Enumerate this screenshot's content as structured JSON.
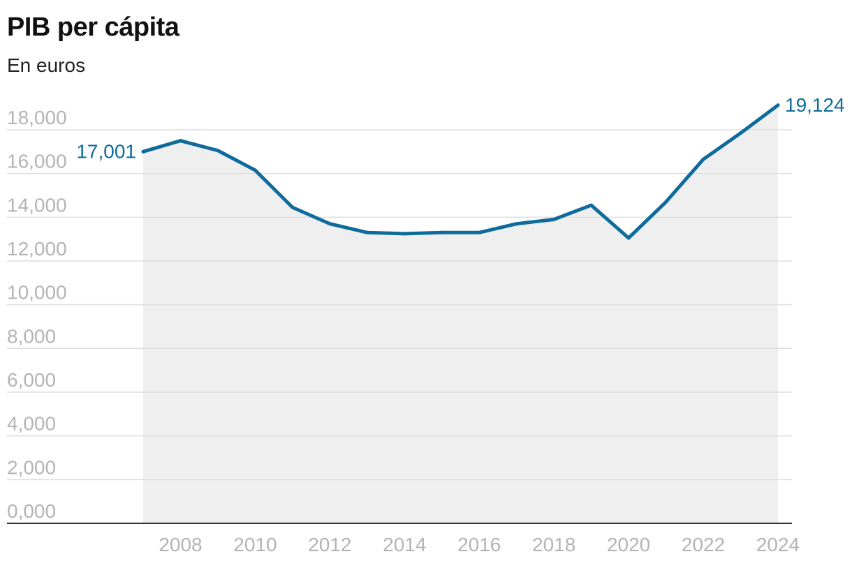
{
  "title": "PIB per cápita",
  "subtitle": "En euros",
  "colors": {
    "line": "#0f6b9b",
    "area": "#efefef",
    "grid": "#dedede",
    "axis": "#333333",
    "tick_text": "#b4b4b4"
  },
  "chart_data": {
    "type": "area",
    "title": "PIB per cápita",
    "subtitle": "En euros",
    "xlabel": "",
    "ylabel": "",
    "x": [
      2007,
      2008,
      2009,
      2010,
      2011,
      2012,
      2013,
      2014,
      2015,
      2016,
      2017,
      2018,
      2019,
      2020,
      2021,
      2022,
      2023,
      2024
    ],
    "series": [
      {
        "values": [
          17001,
          17500,
          17050,
          16150,
          14450,
          13700,
          13300,
          13250,
          13300,
          13300,
          13700,
          13900,
          14550,
          13050,
          14700,
          16650,
          17850,
          19124
        ]
      }
    ],
    "xlim": [
      2007,
      2024
    ],
    "ylim": [
      0,
      18000
    ],
    "x_ticks": [
      2008,
      2010,
      2012,
      2014,
      2016,
      2018,
      2020,
      2022,
      2024
    ],
    "x_tick_labels": [
      "2008",
      "2010",
      "2012",
      "2014",
      "2016",
      "2018",
      "2020",
      "2022",
      "2024"
    ],
    "y_ticks": [
      0,
      2000,
      4000,
      6000,
      8000,
      10000,
      12000,
      14000,
      16000,
      18000
    ],
    "y_tick_labels": [
      "0,000",
      "2,000",
      "4,000",
      "6,000",
      "8,000",
      "10,000",
      "12,000",
      "14,000",
      "16,000",
      "18,000"
    ],
    "annotations": [
      {
        "x": 2007,
        "y": 17001,
        "text": "17,001",
        "side": "left"
      },
      {
        "x": 2024,
        "y": 19124,
        "text": "19,124",
        "side": "right"
      }
    ],
    "grid": true,
    "legend": "none"
  }
}
